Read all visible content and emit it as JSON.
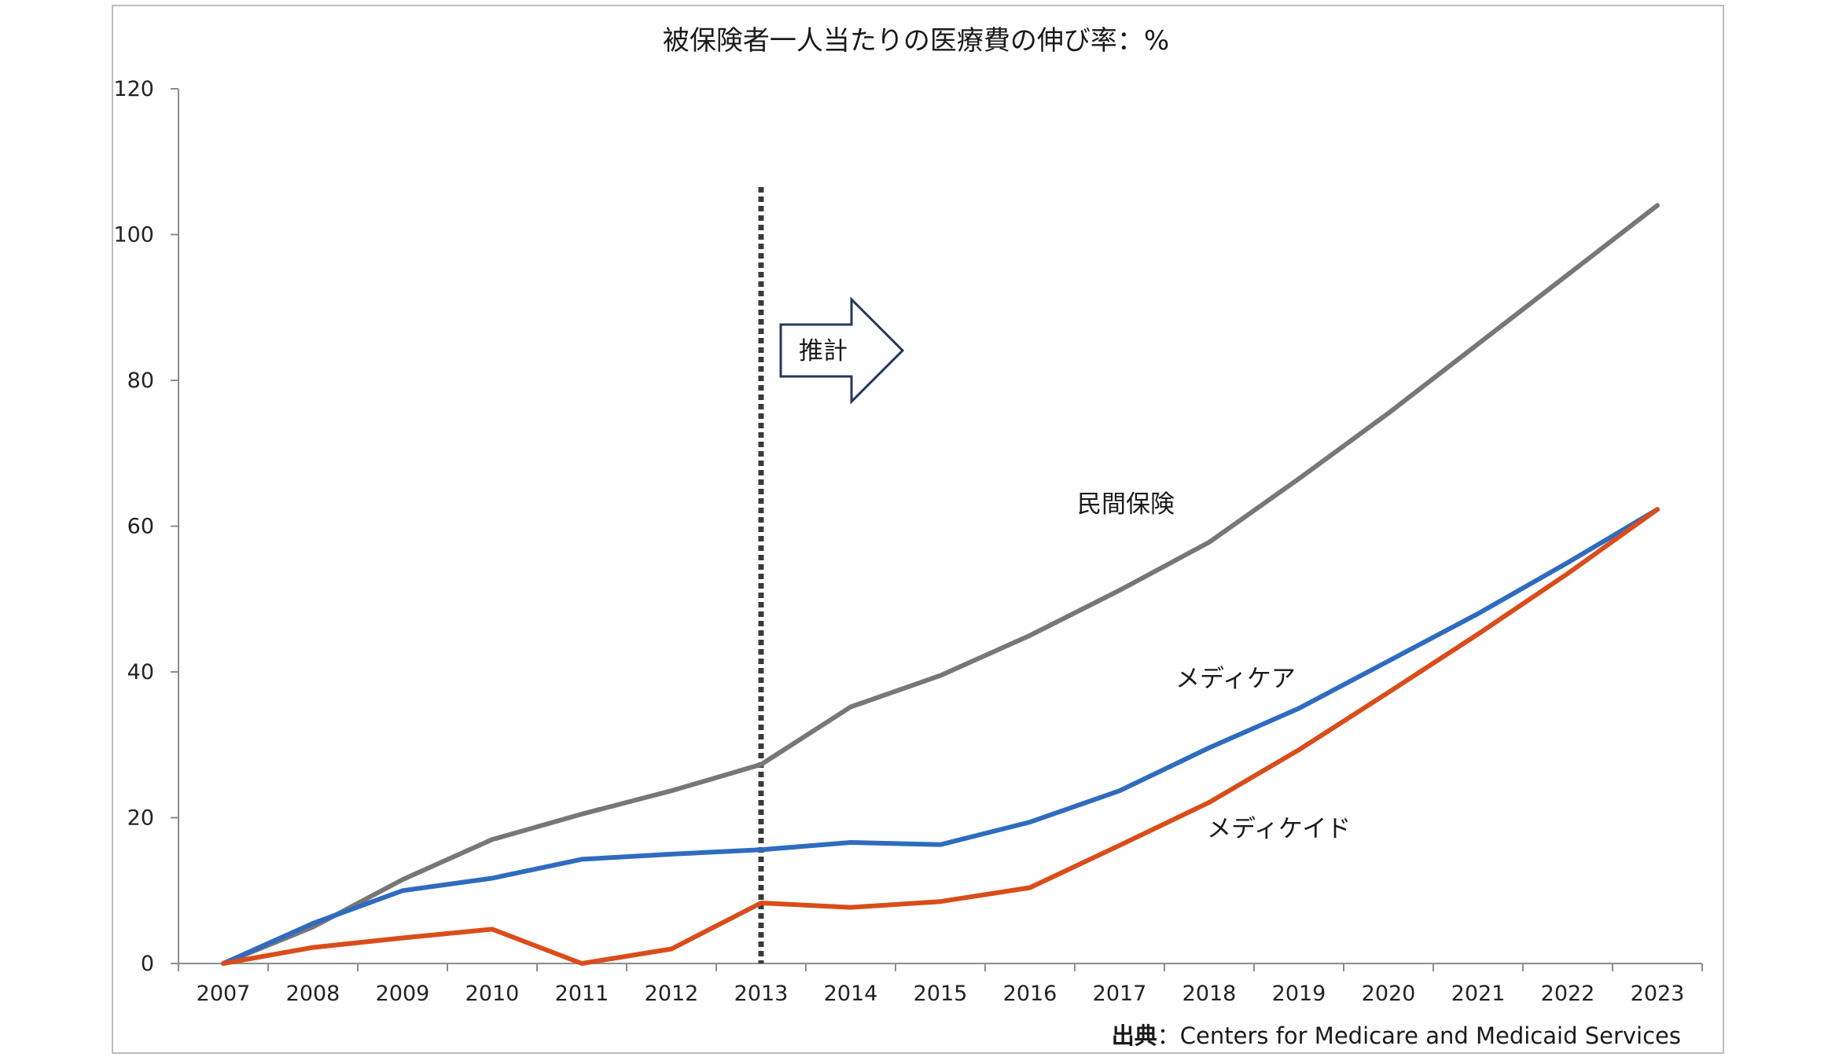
{
  "chart_data": {
    "type": "line",
    "title": "被保険者一人当たりの医療費の伸び率：%",
    "categories": [
      "2007",
      "2008",
      "2009",
      "2010",
      "2011",
      "2012",
      "2013",
      "2014",
      "2015",
      "2016",
      "2017",
      "2018",
      "2019",
      "2020",
      "2021",
      "2022",
      "2023"
    ],
    "ylim": [
      0,
      120
    ],
    "yticks": [
      0,
      20,
      40,
      60,
      80,
      100,
      120
    ],
    "grid": false,
    "series": [
      {
        "name": "民間保険",
        "color": "#777777",
        "values": [
          0,
          5,
          11.5,
          17,
          20.5,
          23.7,
          27.3,
          35.2,
          39.5,
          45,
          51.2,
          57.8,
          66.5,
          75.5,
          85,
          94.5,
          104
        ]
      },
      {
        "name": "メディケア",
        "color": "#2f6bbf",
        "values": [
          0,
          5.5,
          10,
          11.7,
          14.3,
          15,
          15.6,
          16.6,
          16.3,
          19.4,
          23.7,
          29.6,
          35,
          41.5,
          48,
          55,
          62.3
        ]
      },
      {
        "name": "メディケイド",
        "color": "#d94d1a",
        "values": [
          0,
          2.2,
          3.5,
          4.7,
          0,
          2,
          8.3,
          7.7,
          8.5,
          10.4,
          16.2,
          22.1,
          29.3,
          37.2,
          45.2,
          53.5,
          62.3
        ]
      }
    ],
    "projection": {
      "label": "推計",
      "divider_at": "2013"
    },
    "source": {
      "prefix": "出典",
      "sep": "：",
      "text": "Centers for Medicare and Medicaid Services"
    }
  }
}
